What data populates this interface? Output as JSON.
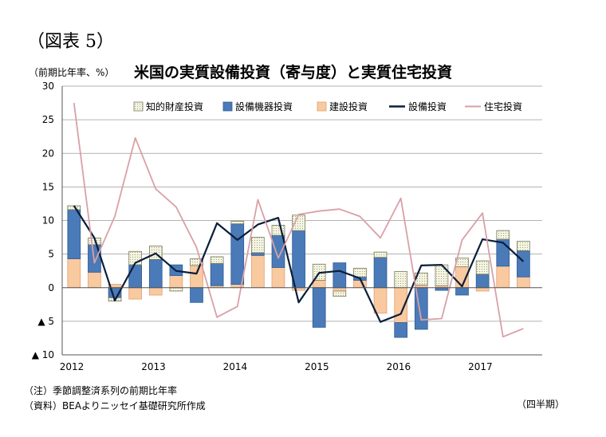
{
  "header": {
    "figure_label": "（図表 5）",
    "unit_label": "（前期比年率、%）",
    "title": "米国の実質設備投資（寄与度）と実質住宅投資"
  },
  "footer": {
    "note": "（注）季節調整済系列の前期比年率",
    "source": "（資料）BEAよりニッセイ基礎研究所作成",
    "period_label": "（四半期）"
  },
  "colors": {
    "ip": "#f2f2dc",
    "equipment": "#4a7ab8",
    "structures": "#f9c9a0",
    "total_line": "#0b1e3a",
    "residential_line": "#d9a0a6",
    "grid": "#9a9a9a"
  },
  "chart_data": {
    "type": "bar",
    "stacked": true,
    "title": "米国の実質設備投資（寄与度）と実質住宅投資",
    "ylabel": "（前期比年率、%）",
    "xlabel": "（四半期）",
    "ylim": [
      -10,
      30
    ],
    "yticks": [
      30,
      25,
      20,
      15,
      10,
      5,
      0,
      -5,
      -10
    ],
    "ytick_labels": [
      "30",
      "25",
      "20",
      "15",
      "10",
      "5",
      "0",
      "▲ 5",
      "▲ 10"
    ],
    "x_year_labels": [
      "2012",
      "2013",
      "2014",
      "2015",
      "2016",
      "2017"
    ],
    "legend_position": "top",
    "x": [
      "2012Q1",
      "2012Q2",
      "2012Q3",
      "2012Q4",
      "2013Q1",
      "2013Q2",
      "2013Q3",
      "2013Q4",
      "2014Q1",
      "2014Q2",
      "2014Q3",
      "2014Q4",
      "2015Q1",
      "2015Q2",
      "2015Q3",
      "2015Q4",
      "2016Q1",
      "2016Q2",
      "2016Q3",
      "2016Q4",
      "2017Q1",
      "2017Q2",
      "2017Q3"
    ],
    "series": [
      {
        "name": "知的財産投資",
        "kind": "bar",
        "values": [
          0.6,
          1.0,
          -0.5,
          2.0,
          2.0,
          -0.5,
          1.0,
          1.0,
          0.4,
          2.3,
          1.5,
          2.3,
          2.4,
          -0.8,
          1.3,
          0.8,
          2.4,
          1.8,
          3.1,
          1.3,
          2.0,
          1.3,
          1.4
        ]
      },
      {
        "name": "設備機器投資",
        "kind": "bar",
        "values": [
          7.3,
          4.1,
          -1.5,
          3.4,
          4.2,
          1.6,
          -2.2,
          3.3,
          9.0,
          0.4,
          4.8,
          8.5,
          -5.9,
          3.7,
          0.5,
          4.5,
          -2.2,
          -6.2,
          -0.4,
          -1.1,
          2.0,
          4.0,
          3.9
        ]
      },
      {
        "name": "建設投資",
        "kind": "bar",
        "values": [
          4.3,
          2.3,
          0.5,
          -1.7,
          -1.1,
          1.8,
          3.3,
          0.3,
          0.5,
          4.8,
          3.0,
          -0.4,
          1.1,
          -0.5,
          1.1,
          -3.8,
          -5.2,
          0.4,
          0.3,
          3.1,
          -0.5,
          3.2,
          1.6
        ]
      },
      {
        "name": "設備投資",
        "kind": "line",
        "values": [
          12.2,
          7.4,
          -1.9,
          3.7,
          5.1,
          2.5,
          2.1,
          9.6,
          7.1,
          9.4,
          10.4,
          -2.2,
          2.2,
          2.5,
          1.4,
          -5.1,
          -3.9,
          3.3,
          3.4,
          0.2,
          7.2,
          6.7,
          3.9
        ]
      },
      {
        "name": "住宅投資",
        "kind": "line",
        "values": [
          27.5,
          3.7,
          10.6,
          22.3,
          14.7,
          12.0,
          6.0,
          -4.4,
          -2.8,
          13.1,
          4.4,
          10.9,
          11.4,
          11.7,
          10.6,
          7.4,
          13.3,
          -4.8,
          -4.6,
          7.1,
          11.1,
          -7.3,
          -6.1
        ]
      }
    ]
  }
}
